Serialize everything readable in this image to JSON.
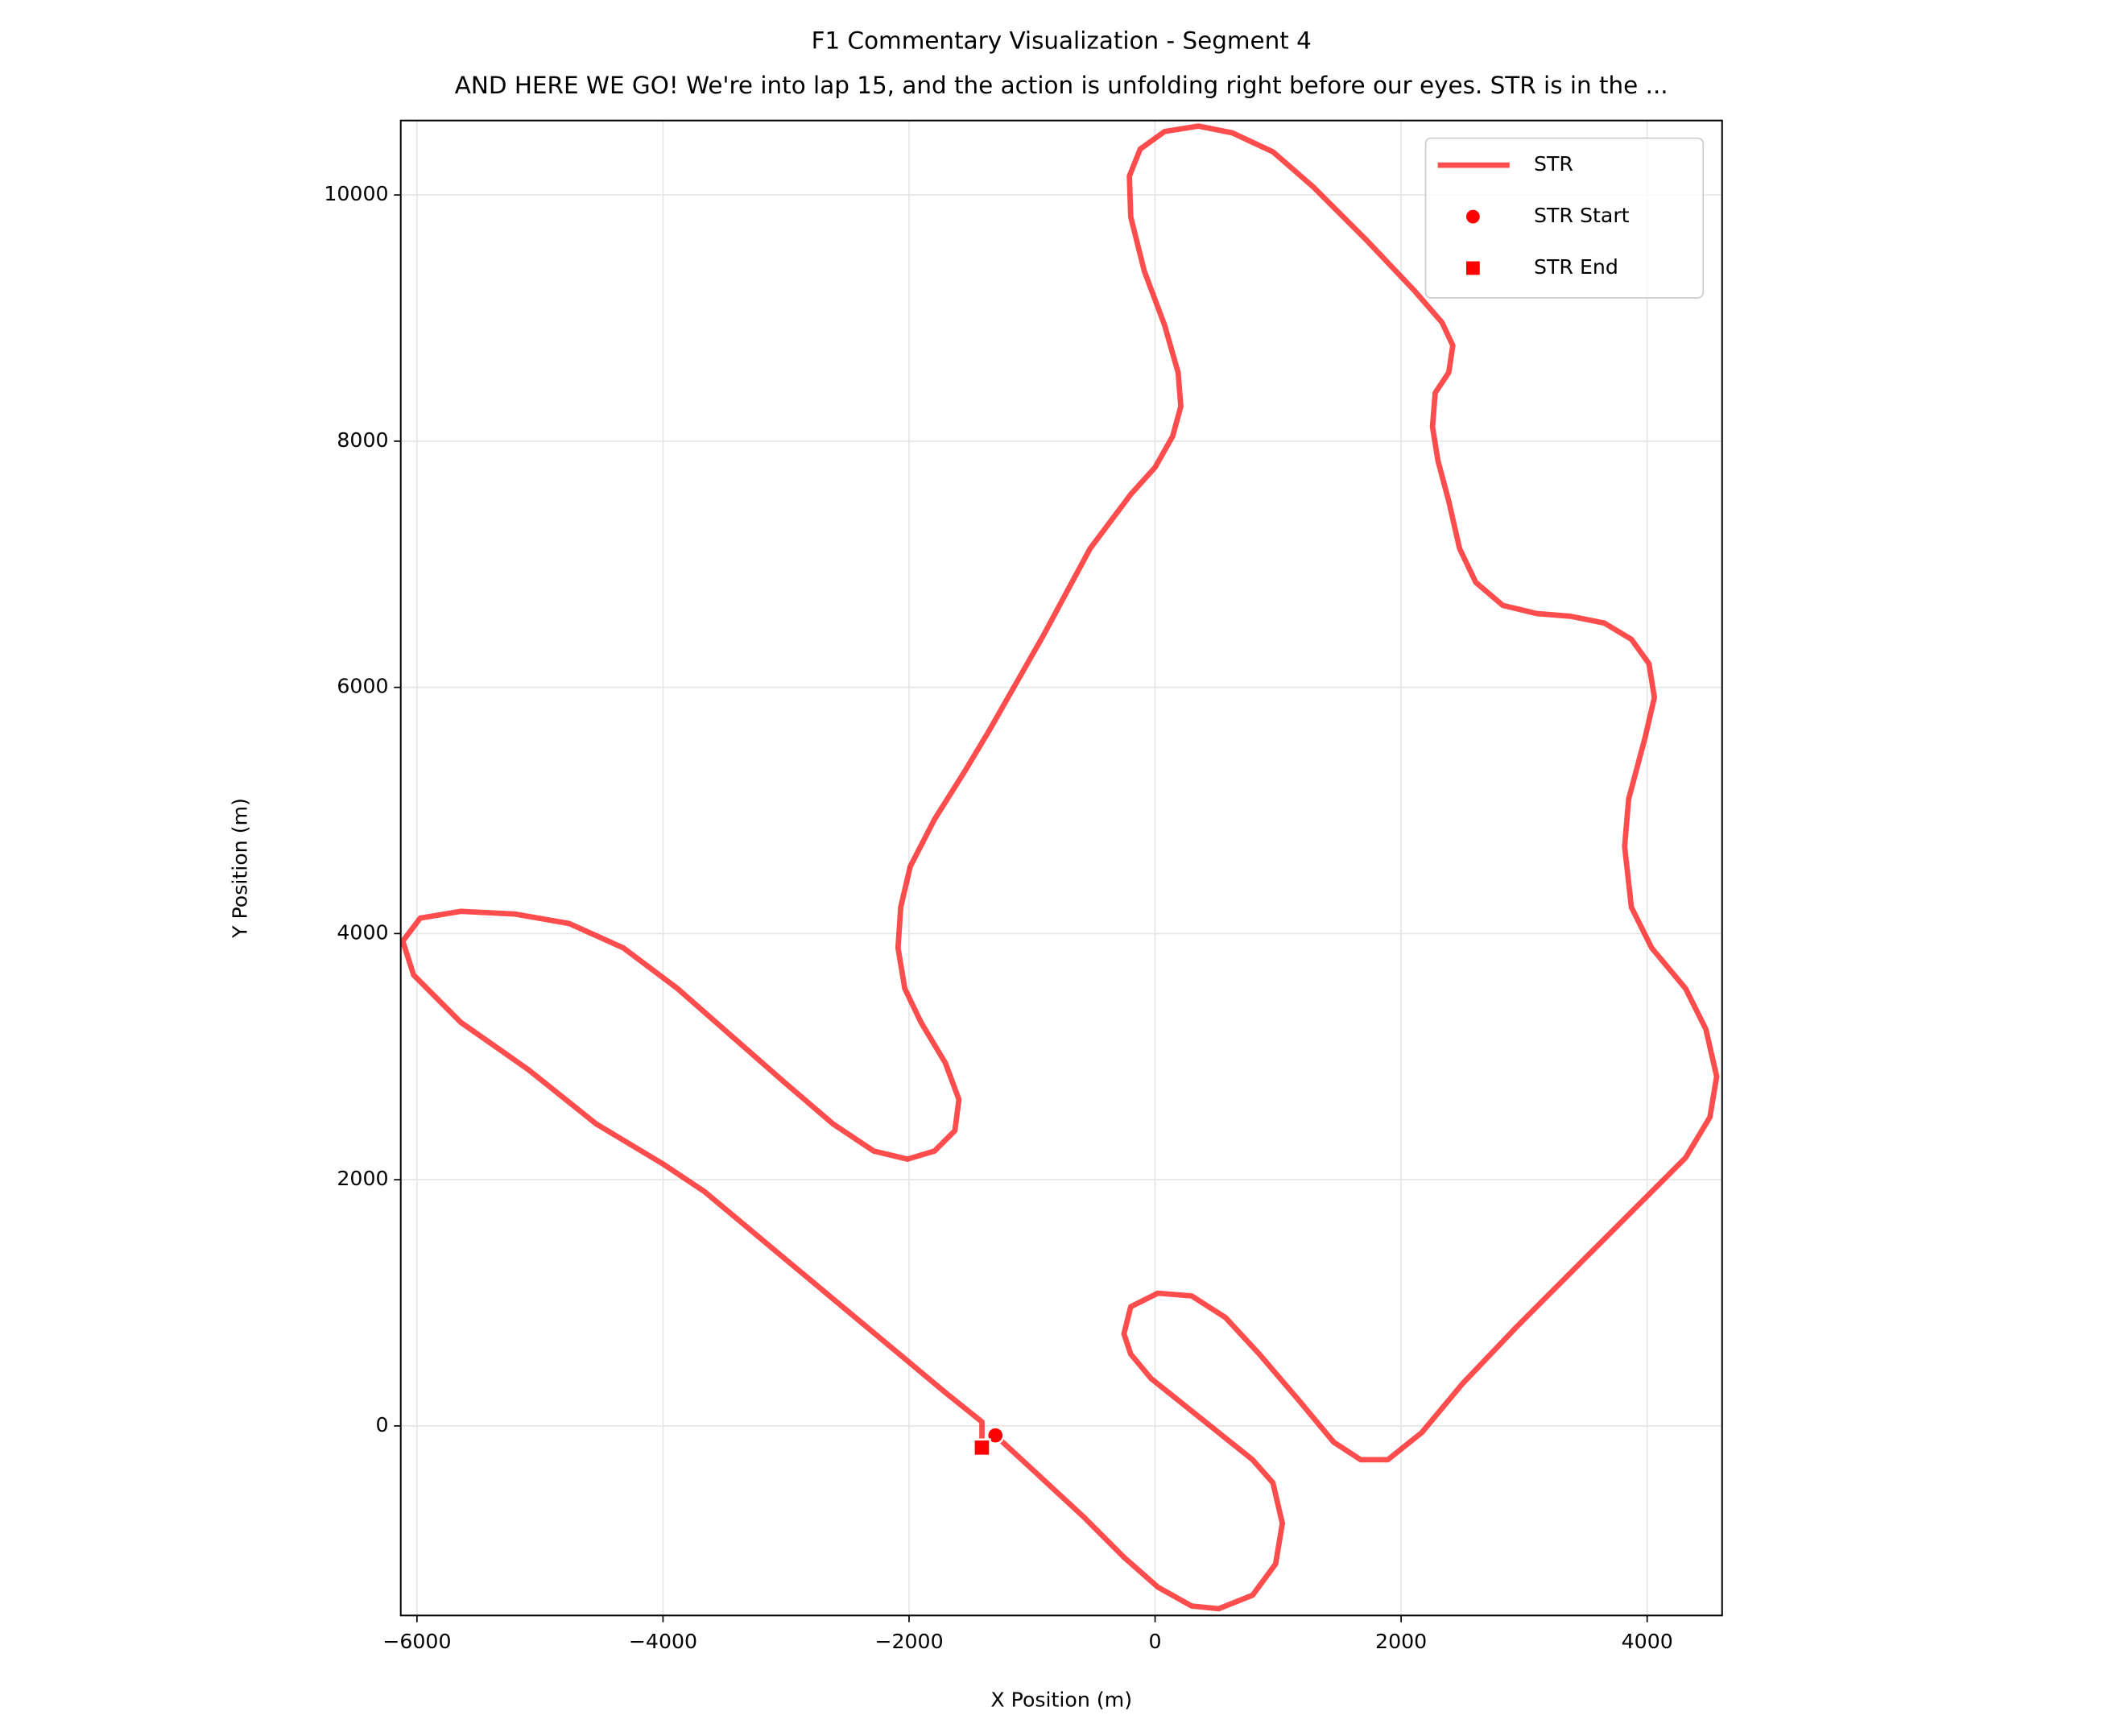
{
  "chart_data": {
    "type": "line",
    "title": "F1 Commentary Visualization - Segment 4",
    "subtitle": "AND HERE WE GO! We're into lap 15, and the action is unfolding right before our eyes. STR is in the ...",
    "xlabel": "X Position (m)",
    "ylabel": "Y Position (m)",
    "xlim": [
      -6132,
      4609
    ],
    "ylim": [
      -1540,
      10605
    ],
    "xticks": [
      {
        "value": -6000,
        "label": "−6000"
      },
      {
        "value": -4000,
        "label": "−4000"
      },
      {
        "value": -2000,
        "label": "−2000"
      },
      0,
      2000,
      4000
    ],
    "yticks": [
      0,
      2000,
      4000,
      6000,
      8000,
      10000
    ],
    "grid": true,
    "legend": "upper right",
    "series": [
      {
        "name": "STR",
        "color": "#ff0000",
        "opacity": 0.7,
        "x": [
          -1298,
          -1023,
          -583,
          -253,
          22,
          297,
          517,
          792,
          979,
          1034,
          957,
          792,
          517,
          242,
          -33,
          -198,
          -253,
          -198,
          22,
          297,
          572,
          847,
          1177,
          1452,
          1672,
          1892,
          2167,
          2497,
          2937,
          3487,
          3982,
          4312,
          4510,
          4565,
          4477,
          4312,
          4037,
          3872,
          3817,
          3850,
          3982,
          4059,
          4015,
          3872,
          3652,
          3377,
          3102,
          2827,
          2607,
          2475,
          2387,
          2299,
          2255,
          2277,
          2387,
          2420,
          2332,
          2112,
          1727,
          1287,
          957,
          627,
          352,
          77,
          -121,
          -209,
          -198,
          -88,
          77,
          187,
          209,
          143,
          0,
          -198,
          -528,
          -913,
          -1353,
          -1551,
          -1793,
          -1991,
          -2068,
          -2090,
          -2035,
          -1903,
          -1705,
          -1595,
          -1628,
          -1793,
          -2013,
          -2288,
          -2618,
          -3003,
          -3443,
          -3883,
          -4323,
          -4763,
          -5203,
          -5643,
          -5973,
          -6116,
          -6028,
          -5643,
          -5093,
          -4543,
          -3993,
          -3663,
          -3003,
          -2343,
          -1683,
          -1408,
          -1408
        ],
        "y": [
          -77,
          -330,
          -737,
          -1067,
          -1309,
          -1463,
          -1485,
          -1375,
          -1122,
          -792,
          -462,
          -275,
          -55,
          165,
          385,
          583,
          748,
          968,
          1078,
          1056,
          880,
          583,
          198,
          -132,
          -275,
          -275,
          -55,
          341,
          803,
          1353,
          1848,
          2178,
          2508,
          2838,
          3223,
          3553,
          3883,
          4213,
          4708,
          5093,
          5588,
          5918,
          6193,
          6391,
          6523,
          6578,
          6600,
          6666,
          6853,
          7128,
          7513,
          7843,
          8118,
          8393,
          8558,
          8778,
          8965,
          9218,
          9625,
          10065,
          10351,
          10505,
          10560,
          10516,
          10373,
          10153,
          9823,
          9383,
          8943,
          8558,
          8283,
          8041,
          7788,
          7568,
          7128,
          6413,
          5643,
          5313,
          4928,
          4543,
          4213,
          3883,
          3553,
          3278,
          2948,
          2651,
          2398,
          2233,
          2167,
          2233,
          2453,
          2783,
          3168,
          3553,
          3883,
          4081,
          4158,
          4180,
          4125,
          3938,
          3663,
          3278,
          2893,
          2453,
          2123,
          1903,
          1353,
          803,
          253,
          33,
          -176
        ]
      },
      {
        "name": "STR Start",
        "color": "#ff0000",
        "marker": "circle",
        "x": [
          -1298
        ],
        "y": [
          -77
        ]
      },
      {
        "name": "STR End",
        "color": "#ff0000",
        "marker": "square",
        "x": [
          -1408
        ],
        "y": [
          -176
        ]
      }
    ]
  }
}
